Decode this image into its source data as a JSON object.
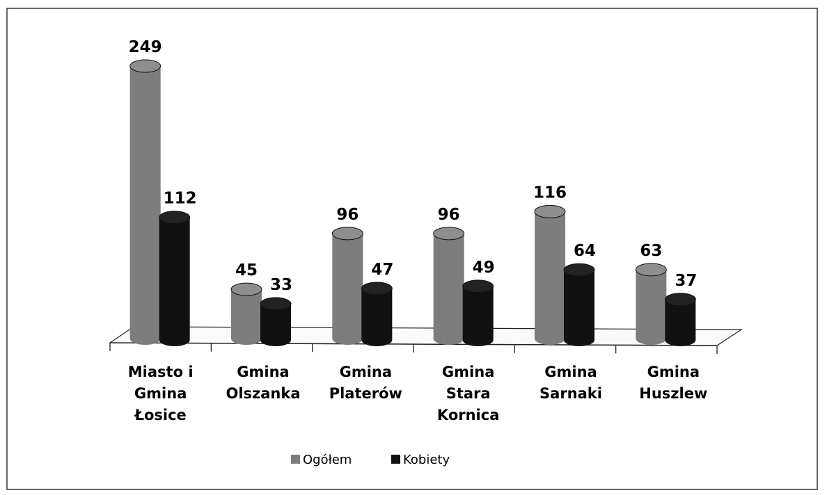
{
  "chart_data": {
    "type": "bar",
    "categories": [
      "Miasto i Gmina Łosice",
      "Gmina Olszanka",
      "Gmina Platerów",
      "Gmina Stara Kornica",
      "Gmina Sarnaki",
      "Gmina Huszlew"
    ],
    "series": [
      {
        "name": "Ogółem",
        "color": "#7d7d7d",
        "values": [
          249,
          45,
          96,
          96,
          116,
          63
        ]
      },
      {
        "name": "Kobiety",
        "color": "#111111",
        "values": [
          112,
          33,
          47,
          49,
          64,
          37
        ]
      }
    ]
  }
}
